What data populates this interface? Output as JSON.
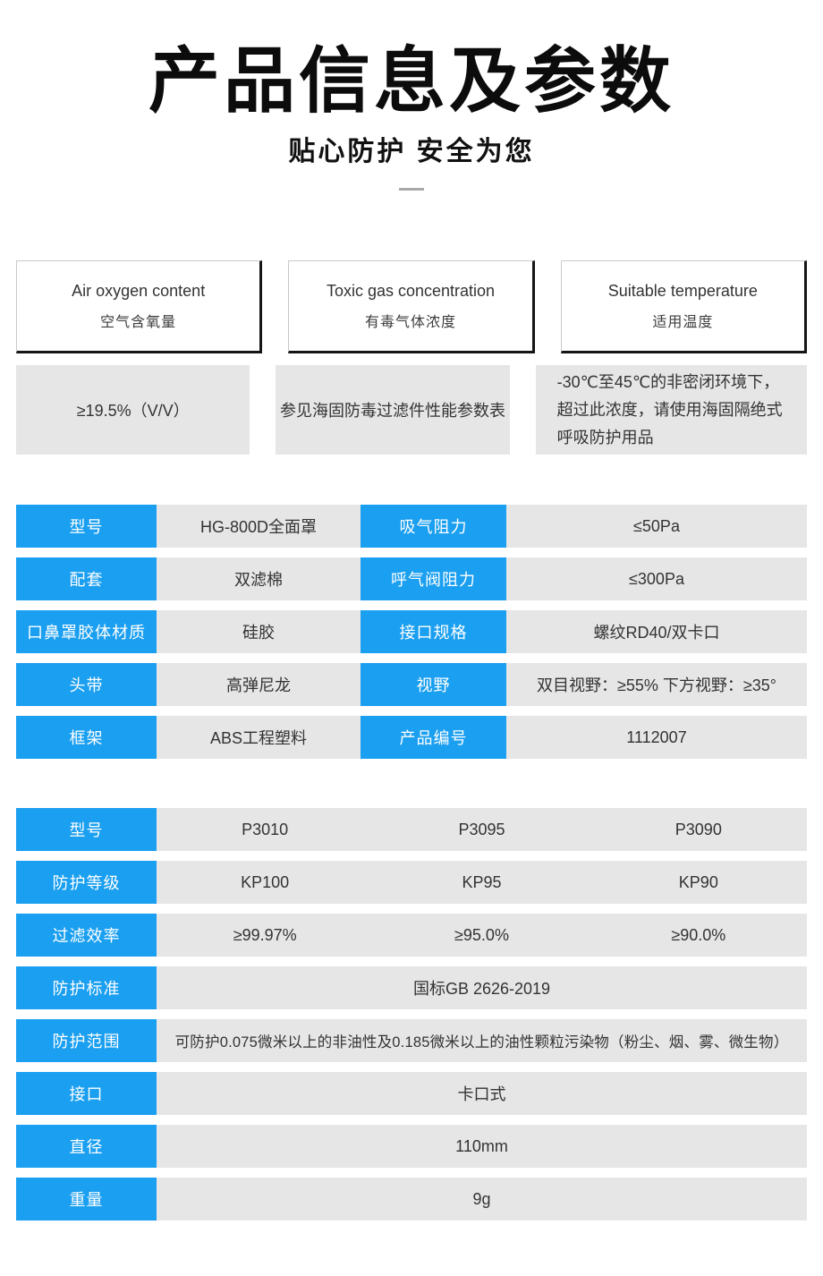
{
  "header": {
    "title": "产品信息及参数",
    "subtitle": "贴心防护 安全为您"
  },
  "colors": {
    "accent_blue": "#1b9ff0",
    "cell_gray": "#e6e6e6",
    "border_black": "#151515"
  },
  "conditions": [
    {
      "title_en": "Air oxygen content",
      "title_zh": "空气含氧量",
      "value": "≥19.5%（V/V）"
    },
    {
      "title_en": "Toxic gas concentration",
      "title_zh": "有毒气体浓度",
      "value": "参见海固防毒过滤件性能参数表"
    },
    {
      "title_en": "Suitable temperature",
      "title_zh": "适用温度",
      "value": "-30℃至45℃的非密闭环境下，超过此浓度，请使用海固隔绝式呼吸防护用品"
    }
  ],
  "spec_table": {
    "rows": [
      {
        "label1": "型号",
        "value1": "HG-800D全面罩",
        "label2": "吸气阻力",
        "value2": "≤50Pa"
      },
      {
        "label1": "配套",
        "value1": "双滤棉",
        "label2": "呼气阀阻力",
        "value2": "≤300Pa"
      },
      {
        "label1": "口鼻罩胶体材质",
        "value1": "硅胶",
        "label2": "接口规格",
        "value2": "螺纹RD40/双卡口"
      },
      {
        "label1": "头带",
        "value1": "高弹尼龙",
        "label2": "视野",
        "value2": "双目视野：≥55% 下方视野：≥35°"
      },
      {
        "label1": "框架",
        "value1": "ABS工程塑料",
        "label2": "产品编号",
        "value2": "1112007"
      }
    ]
  },
  "filter_table": {
    "multi_rows": [
      {
        "label": "型号",
        "values": [
          "P3010",
          "P3095",
          "P3090"
        ]
      },
      {
        "label": "防护等级",
        "values": [
          "KP100",
          "KP95",
          "KP90"
        ]
      },
      {
        "label": "过滤效率",
        "values": [
          "≥99.97%",
          "≥95.0%",
          "≥90.0%"
        ]
      }
    ],
    "single_rows": [
      {
        "label": "防护标准",
        "value": "国标GB 2626-2019"
      },
      {
        "label": "防护范围",
        "value": "可防护0.075微米以上的非油性及0.185微米以上的油性颗粒污染物（粉尘、烟、雾、微生物）"
      },
      {
        "label": "接口",
        "value": "卡口式"
      },
      {
        "label": "直径",
        "value": "110mm"
      },
      {
        "label": "重量",
        "value": "9g"
      }
    ]
  }
}
